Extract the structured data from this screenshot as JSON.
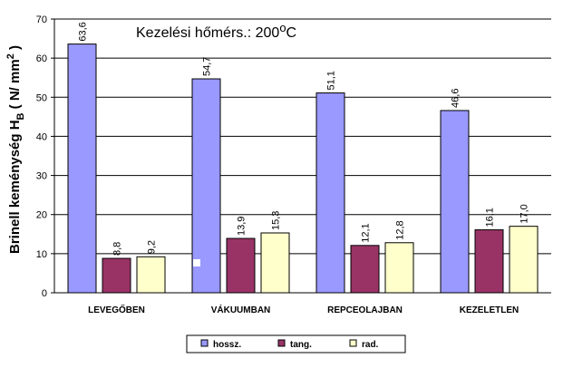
{
  "chart_data": {
    "type": "bar",
    "title": "Kezelési hőmérs.: 200",
    "title_suffix": "C",
    "title_sup": "o",
    "ylabel_main": "Brinell keménység H",
    "ylabel_sub": "B",
    "ylabel_unit_pre": " ( N/ mm",
    "ylabel_unit_sup": "2",
    "ylabel_unit_post": " )",
    "xlabel": "",
    "categories": [
      "LEVEGŐBEN",
      "VÁKUUMBAN",
      "REPCEOLAJBAN",
      "KEZELETLEN"
    ],
    "ylim": [
      0,
      70
    ],
    "yticks": [
      0,
      10,
      20,
      30,
      40,
      50,
      60,
      70
    ],
    "grid": true,
    "legend_position": "bottom",
    "series": [
      {
        "name": "hossz.",
        "values": [
          63.6,
          54.7,
          51.1,
          46.6
        ],
        "labels": [
          "63,6",
          "54,7",
          "51,1",
          "46,6"
        ],
        "color": "#9999ff"
      },
      {
        "name": "tang.",
        "values": [
          8.8,
          13.9,
          12.1,
          16.1
        ],
        "labels": [
          "8,8",
          "13,9",
          "12,1",
          "16,1"
        ],
        "color": "#993366"
      },
      {
        "name": "rad.",
        "values": [
          9.2,
          15.3,
          12.8,
          17.0
        ],
        "labels": [
          "9,2",
          "15,3",
          "12,8",
          "17,0"
        ],
        "color": "#ffffcc"
      }
    ]
  }
}
